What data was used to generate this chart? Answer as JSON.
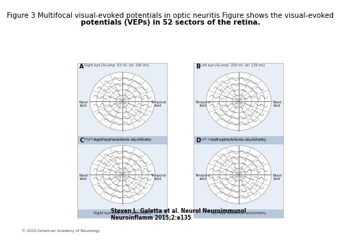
{
  "title_line1": "Figure 3 Multifocal visual-evoked potentials in optic neuritis Figure shows the visual-evoked",
  "title_line2": "potentials (VEPs) in 52 sectors of the retina.",
  "title_fontsize": 7.5,
  "panels": [
    {
      "label": "A",
      "subtitle": "Right eye (Av.amp: 63 nV, lat: 166 ms)",
      "footer": "Right eye reference asymmetry"
    },
    {
      "label": "B",
      "subtitle": "Left eye (Av.amp: 200 nV, lat: 139 ms)",
      "footer": "Left eye reference asymmetry"
    },
    {
      "label": "C",
      "subtitle": "Right eye (Av.amp: 124 nV, lat: 196 ms)",
      "footer": "Right eye reference asymmetry"
    },
    {
      "label": "D",
      "subtitle": "Left eye (Av.amp: 176 nV, lat: 147 ms)",
      "footer": "Left eye reference asymmetry"
    }
  ],
  "citation_line1": "Steven L. Galetta et al. Neurol Neuroimmunol",
  "citation_line2": "Neuroinflamm 2015;2:e135",
  "copyright": "© 2015 American Academy of Neurology",
  "bg_color": "#ffffff",
  "panel_bg": "#e8eef5",
  "footer_bg": "#b8c8dc",
  "grid_color": "#999999",
  "line_color": "#777777",
  "num_rings": 5
}
